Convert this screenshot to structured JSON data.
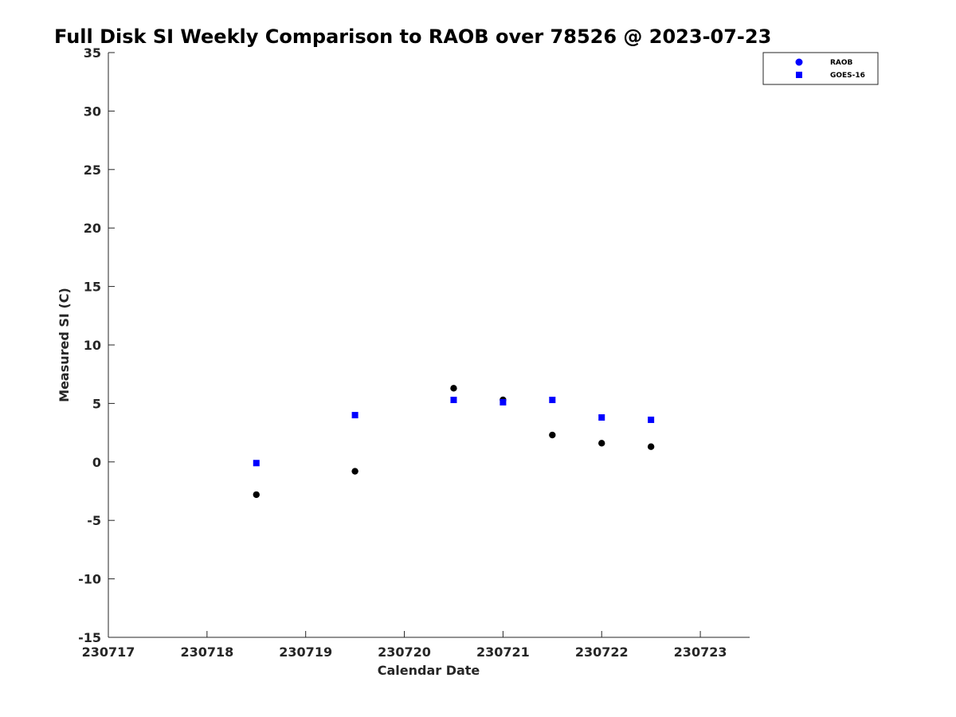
{
  "chart_data": {
    "type": "scatter",
    "title": "Full Disk SI Weekly Comparison to RAOB over 78526 @ 2023-07-23",
    "xlabel": "Calendar Date",
    "ylabel": "Measured SI (C)",
    "xlim": [
      230717,
      230723.5
    ],
    "ylim": [
      -15,
      35
    ],
    "xticks": [
      230717,
      230718,
      230719,
      230720,
      230721,
      230722,
      230723
    ],
    "xtick_labels": [
      "230717",
      "230718",
      "230719",
      "230720",
      "230721",
      "230722",
      "230723"
    ],
    "yticks": [
      -15,
      -10,
      -5,
      0,
      5,
      10,
      15,
      20,
      25,
      30,
      35
    ],
    "ytick_labels": [
      "-15",
      "-10",
      "-5",
      "0",
      "5",
      "10",
      "15",
      "20",
      "25",
      "30",
      "35"
    ],
    "grid": false,
    "legend_position": "top-right",
    "series": [
      {
        "name": "RAOB",
        "marker": "circle",
        "color": "#000000",
        "legend_color": "#0000ff",
        "x": [
          230718.5,
          230719.5,
          230720.5,
          230721,
          230721.5,
          230722,
          230722.5
        ],
        "y": [
          -2.8,
          -0.8,
          6.3,
          5.3,
          2.3,
          1.6,
          1.3
        ]
      },
      {
        "name": "GOES-16",
        "marker": "square",
        "color": "#0000ff",
        "legend_color": "#0000ff",
        "x": [
          230718.5,
          230719.5,
          230720.5,
          230721,
          230721.5,
          230722,
          230722.5
        ],
        "y": [
          -0.1,
          4.0,
          5.3,
          5.1,
          5.3,
          3.8,
          3.6
        ]
      }
    ]
  }
}
